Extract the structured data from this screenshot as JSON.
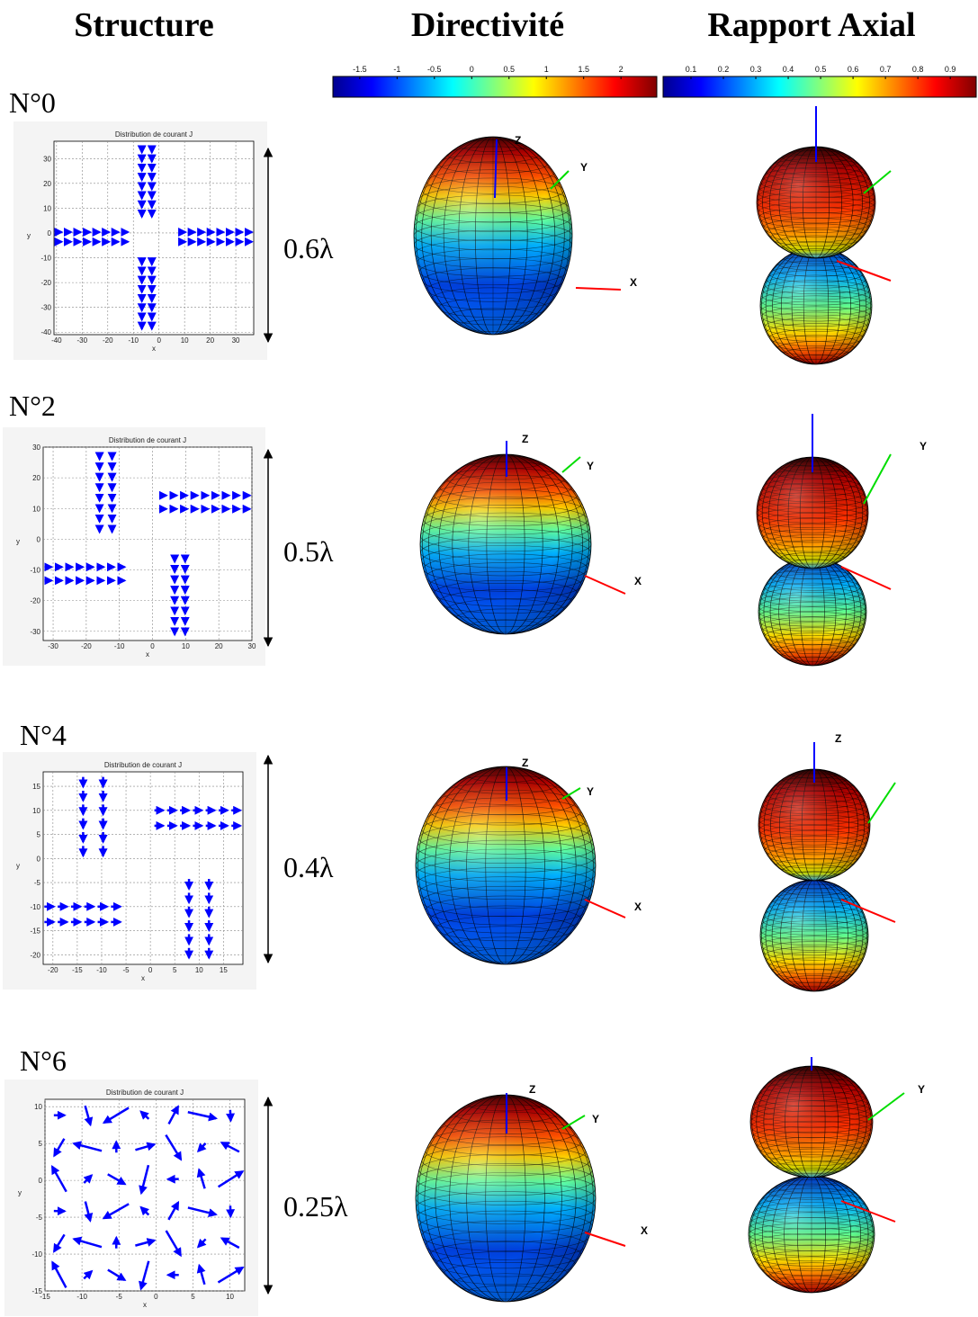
{
  "headers": [
    "Structure",
    "Directivité",
    "Rapport Axial"
  ],
  "colorbars": [
    {
      "ticks": [
        -1.5,
        -1,
        -0.5,
        0,
        0.5,
        1,
        1.5,
        2
      ],
      "lim": [
        -1.86,
        2.48
      ]
    },
    {
      "ticks": [
        0.1,
        0.2,
        0.3,
        0.4,
        0.5,
        0.6,
        0.7,
        0.8,
        0.9
      ],
      "lim": [
        0.014,
        0.98
      ]
    }
  ],
  "rows": [
    {
      "label": "N°0",
      "size": "0.6λ",
      "plot": {
        "title": "Distribution de courant J",
        "xlabel": "x",
        "ylabel": "y",
        "xlim": [
          -41,
          37
        ],
        "xticks": [
          -40,
          -30,
          -20,
          -10,
          0,
          10,
          20,
          30
        ],
        "ylim": [
          -41,
          37
        ],
        "yticks": [
          -40,
          -30,
          -20,
          -10,
          0,
          10,
          20,
          30
        ]
      },
      "directivity_labels": [
        "Z",
        "Y",
        "X"
      ]
    },
    {
      "label": "N°2",
      "size": "0.5λ",
      "plot": {
        "title": "Distribution de courant J",
        "xlabel": "x",
        "ylabel": "y",
        "xlim": [
          -33,
          30
        ],
        "xticks": [
          -30,
          -20,
          -10,
          0,
          10,
          20,
          30
        ],
        "ylim": [
          -33,
          30
        ],
        "yticks": [
          -30,
          -20,
          -10,
          0,
          10,
          20,
          30
        ]
      },
      "directivity_labels": [
        "Z",
        "Y",
        "X"
      ],
      "axial_labels": [
        "Y"
      ]
    },
    {
      "label": "N°4",
      "size": "0.4λ",
      "plot": {
        "title": "Distribution de courant J",
        "xlabel": "x",
        "ylabel": "y",
        "xlim": [
          -22,
          19
        ],
        "xticks": [
          -20,
          -15,
          -10,
          -5,
          0,
          5,
          10,
          15
        ],
        "ylim": [
          -22,
          18
        ],
        "yticks": [
          -20,
          -15,
          -10,
          -5,
          0,
          5,
          10,
          15
        ]
      },
      "directivity_labels": [
        "Z",
        "Y",
        "X"
      ],
      "axial_labels": [
        "Z"
      ]
    },
    {
      "label": "N°6",
      "size": "0.25λ",
      "plot": {
        "title": "Distribution de courant J",
        "xlabel": "x",
        "ylabel": "y",
        "xlim": [
          -15,
          12
        ],
        "xticks": [
          -15,
          -10,
          -5,
          0,
          5,
          10
        ],
        "ylim": [
          -15,
          11
        ],
        "yticks": [
          -15,
          -10,
          -5,
          0,
          5,
          10
        ]
      },
      "directivity_labels": [
        "Z",
        "Y",
        "X"
      ],
      "axial_labels": [
        "Y"
      ]
    }
  ]
}
